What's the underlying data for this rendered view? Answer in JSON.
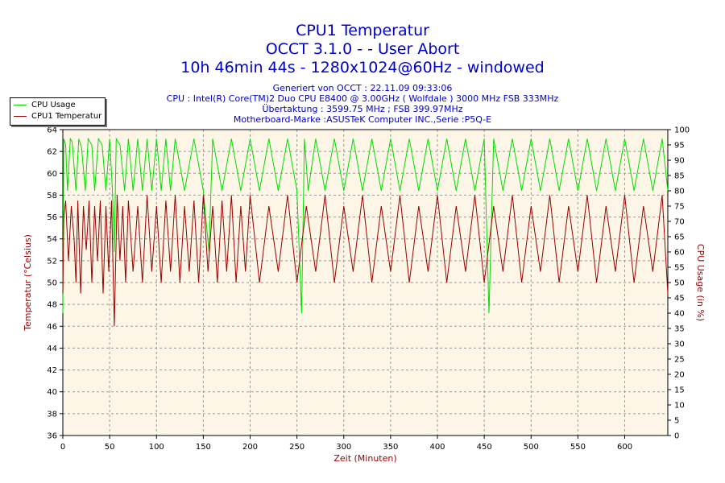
{
  "title_lines": [
    "CPU1 Temperatur",
    "OCCT 3.1.0 -  - User Abort",
    "10h 46min 44s - 1280x1024@60Hz - windowed"
  ],
  "info_lines": [
    "Generiert von OCCT : 22.11.09 09:33:06",
    "CPU : Intel(R) Core(TM)2 Duo CPU E8400 @ 3.00GHz ( Wolfdale ) 3000 MHz FSB 333MHz",
    "Übertaktung : 3599.75 MHz ; FSB 399.97MHz",
    "Motherboard-Marke :ASUSTeK Computer INC.,Serie :P5Q-E"
  ],
  "colors": {
    "title": "#0000cc",
    "usage": "#00dd00",
    "temperature": "#990000",
    "plot_bg": "#fdf5e6",
    "grid": "#999999"
  },
  "chart_data": {
    "type": "line",
    "xlabel": "Zeit (Minuten)",
    "ylabel": "Temperatur (°Celsius)",
    "y2label": "CPU Usage (in %)",
    "xlim": [
      0,
      646
    ],
    "ylim": [
      36,
      64
    ],
    "y2lim": [
      0,
      100
    ],
    "xticks": [
      0,
      50,
      100,
      150,
      200,
      250,
      300,
      350,
      400,
      450,
      500,
      550,
      600
    ],
    "yticks": [
      36,
      38,
      40,
      42,
      44,
      46,
      48,
      50,
      52,
      54,
      56,
      58,
      60,
      62,
      64
    ],
    "y2ticks": [
      0,
      5,
      10,
      15,
      20,
      25,
      30,
      35,
      40,
      45,
      50,
      55,
      60,
      65,
      70,
      75,
      80,
      85,
      90,
      95,
      100
    ],
    "grid": true,
    "legend_position": "top-left",
    "series": [
      {
        "name": "CPU Usage",
        "axis": "right",
        "x": [
          0,
          1,
          3,
          5,
          8,
          10,
          14,
          17,
          20,
          24,
          27,
          31,
          34,
          38,
          42,
          46,
          50,
          53,
          55,
          57,
          61,
          66,
          70,
          75,
          80,
          85,
          90,
          95,
          100,
          105,
          110,
          115,
          120,
          130,
          140,
          150,
          156,
          160,
          170,
          180,
          190,
          200,
          210,
          220,
          230,
          240,
          250,
          255,
          258,
          262,
          270,
          280,
          290,
          300,
          310,
          320,
          330,
          340,
          350,
          360,
          370,
          380,
          390,
          400,
          410,
          420,
          430,
          440,
          450,
          455,
          460,
          470,
          480,
          490,
          500,
          510,
          520,
          530,
          540,
          550,
          560,
          570,
          580,
          590,
          600,
          610,
          620,
          630,
          640,
          646
        ],
        "y": [
          40,
          97,
          95,
          80,
          97,
          96,
          80,
          97,
          94,
          80,
          97,
          95,
          80,
          97,
          95,
          80,
          97,
          80,
          60,
          97,
          95,
          80,
          97,
          80,
          97,
          80,
          97,
          80,
          97,
          80,
          97,
          80,
          97,
          80,
          97,
          80,
          60,
          97,
          80,
          97,
          80,
          97,
          80,
          97,
          80,
          97,
          80,
          40,
          97,
          80,
          97,
          80,
          97,
          80,
          97,
          80,
          97,
          80,
          97,
          80,
          97,
          80,
          97,
          80,
          97,
          80,
          97,
          80,
          97,
          40,
          97,
          80,
          97,
          80,
          97,
          80,
          97,
          80,
          97,
          80,
          97,
          80,
          97,
          80,
          97,
          80,
          97,
          80,
          97,
          80
        ]
      },
      {
        "name": "CPU1 Temperatur",
        "axis": "left",
        "x": [
          0,
          1,
          3,
          6,
          9,
          12,
          14,
          16,
          19,
          22,
          25,
          28,
          31,
          34,
          37,
          40,
          43,
          46,
          49,
          52,
          55,
          58,
          61,
          64,
          67,
          70,
          75,
          80,
          85,
          90,
          95,
          100,
          105,
          110,
          115,
          120,
          125,
          130,
          135,
          140,
          145,
          150,
          155,
          160,
          165,
          170,
          175,
          180,
          185,
          190,
          195,
          200,
          210,
          220,
          230,
          240,
          250,
          260,
          270,
          280,
          290,
          300,
          310,
          320,
          330,
          340,
          350,
          360,
          370,
          380,
          390,
          400,
          410,
          420,
          430,
          440,
          450,
          460,
          470,
          480,
          490,
          500,
          510,
          520,
          530,
          540,
          550,
          560,
          570,
          580,
          590,
          600,
          610,
          620,
          630,
          640,
          646
        ],
        "y": [
          49,
          56,
          57.5,
          52,
          57,
          54,
          50,
          57.5,
          49,
          57,
          53,
          57.5,
          50,
          57,
          52,
          57.5,
          49,
          57,
          51,
          57.5,
          46,
          58,
          52,
          57,
          50,
          57.5,
          51,
          57,
          50,
          58,
          51,
          57,
          50,
          57.5,
          51,
          58,
          50,
          57,
          51,
          57.5,
          50,
          58,
          51,
          57,
          50,
          57.5,
          51,
          58,
          50,
          57,
          51,
          58,
          50,
          57,
          51,
          58,
          50,
          57,
          51,
          58,
          50,
          57,
          51,
          58,
          50,
          57,
          51,
          58,
          50,
          57,
          51,
          58,
          50,
          57,
          51,
          58,
          50,
          57,
          51,
          58,
          50,
          57,
          51,
          58,
          50,
          57,
          51,
          58,
          50,
          57,
          51,
          58,
          50,
          57,
          51,
          58,
          49
        ]
      }
    ]
  }
}
